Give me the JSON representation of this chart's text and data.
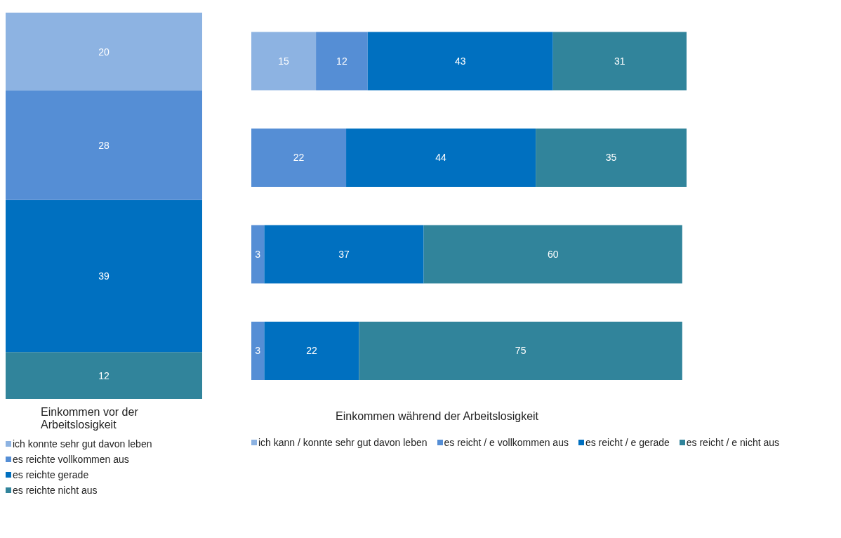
{
  "chart_data": [
    {
      "type": "bar",
      "stacked": true,
      "relative": false,
      "categories": [
        null
      ],
      "xlabel": "Einkommen vor der Arbeitslosigkeit",
      "data_labels": true,
      "legend": "bottom",
      "tick_labels": false,
      "grid": false,
      "series": [
        {
          "name": "es reichte nicht aus",
          "color": "#31849b",
          "values": [
            12
          ]
        },
        {
          "name": "es reichte gerade",
          "color": "#0070c0",
          "values": [
            39
          ]
        },
        {
          "name": "es reichte vollkommen aus",
          "color": "#558ed5",
          "values": [
            28
          ]
        },
        {
          "name": "ich konnte sehr gut davon leben",
          "color": "#8db3e2",
          "values": [
            20
          ]
        }
      ]
    },
    {
      "type": "bar",
      "stacked": true,
      "orientation": "horizontal",
      "categories": [
        null,
        null,
        null,
        null
      ],
      "xlabel": "Einkommen während der Arbeitslosigkeit",
      "data_labels": true,
      "legend": "bottom",
      "tick_labels": false,
      "grid": false,
      "series": [
        {
          "name": "ich kann / konnte sehr gut davon leben",
          "color": "#8db3e2",
          "values": [
            15,
            null,
            null,
            null
          ]
        },
        {
          "name": "es reicht / e vollkommen aus",
          "color": "#558ed5",
          "values": [
            12,
            22,
            3,
            3
          ]
        },
        {
          "name": "es reicht / e gerade",
          "color": "#0070c0",
          "values": [
            43,
            44,
            37,
            22
          ]
        },
        {
          "name": "es reicht / e nicht aus",
          "color": "#31849b",
          "values": [
            31,
            35,
            60,
            75
          ]
        }
      ]
    }
  ]
}
